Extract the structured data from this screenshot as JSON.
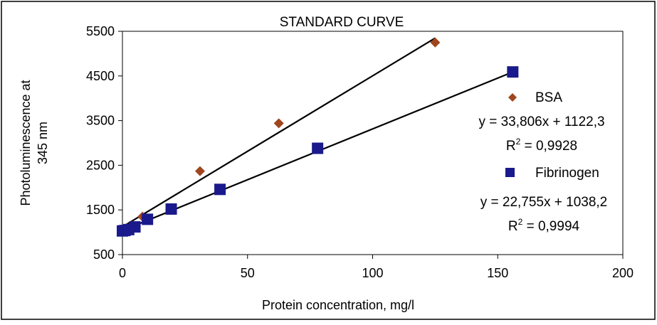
{
  "chart_data": {
    "type": "scatter",
    "title": "STANDARD CURVE",
    "xlabel": "Protein concentration, mg/l",
    "ylabel_lines": [
      "Photoluminescence at",
      "345 nm"
    ],
    "xlim": [
      0,
      200
    ],
    "ylim": [
      500,
      5500
    ],
    "xticks": [
      0,
      50,
      100,
      150,
      200
    ],
    "yticks": [
      500,
      1500,
      2500,
      3500,
      4500,
      5500
    ],
    "grid": false,
    "legend_position": "right",
    "series": [
      {
        "name": "BSA",
        "marker": "diamond",
        "color": "#A0461E",
        "points": [
          [
            0,
            1050
          ],
          [
            1,
            1060
          ],
          [
            2,
            1090
          ],
          [
            4,
            1150
          ],
          [
            8,
            1350
          ],
          [
            31,
            2370
          ],
          [
            62.5,
            3440
          ],
          [
            125,
            5250
          ]
        ],
        "trendline": {
          "slope": 33.806,
          "intercept": 1122.3,
          "x_range": [
            0,
            125
          ]
        },
        "equation": "y = 33,806x + 1122,3",
        "r2_prefix": "R",
        "r2_sup": "2",
        "r2_value": " = 0,9928"
      },
      {
        "name": "Fibrinogen",
        "marker": "square",
        "color": "#1A1A8C",
        "points": [
          [
            0,
            1030
          ],
          [
            1,
            1040
          ],
          [
            2.5,
            1060
          ],
          [
            5,
            1120
          ],
          [
            10,
            1290
          ],
          [
            19.5,
            1520
          ],
          [
            39,
            1960
          ],
          [
            78,
            2880
          ],
          [
            156,
            4590
          ]
        ],
        "trendline": {
          "slope": 22.755,
          "intercept": 1038.2,
          "x_range": [
            0,
            156
          ]
        },
        "equation": "y = 22,755x + 1038,2",
        "r2_prefix": "R",
        "r2_sup": "2",
        "r2_value": " = 0,9994"
      }
    ]
  }
}
